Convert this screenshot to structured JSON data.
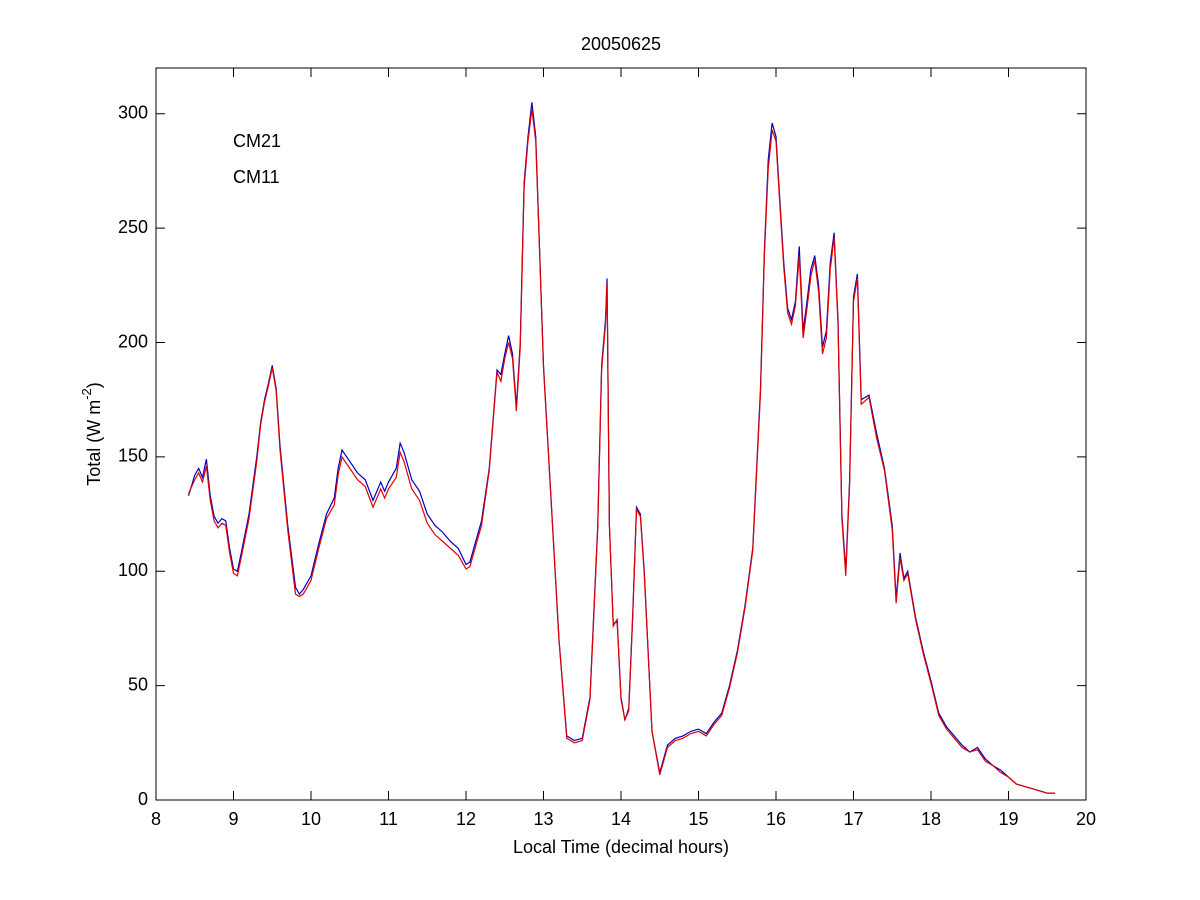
{
  "chart_data": {
    "type": "line",
    "title": "20050625",
    "xlabel": "Local Time (decimal hours)",
    "ylabel": [
      "Total (W m",
      "-2",
      ")"
    ],
    "xlim": [
      8,
      20
    ],
    "xticks": [
      8,
      9,
      10,
      11,
      12,
      13,
      14,
      15,
      16,
      17,
      18,
      19,
      20
    ],
    "ylim": [
      0,
      320
    ],
    "yticks": [
      0,
      50,
      100,
      150,
      200,
      250,
      300
    ],
    "legend": "upper left",
    "x": [
      8.42,
      8.5,
      8.55,
      8.6,
      8.65,
      8.7,
      8.75,
      8.8,
      8.85,
      8.9,
      8.95,
      9.0,
      9.05,
      9.1,
      9.2,
      9.3,
      9.35,
      9.4,
      9.45,
      9.5,
      9.55,
      9.6,
      9.7,
      9.8,
      9.85,
      9.9,
      10.0,
      10.1,
      10.2,
      10.3,
      10.35,
      10.4,
      10.5,
      10.6,
      10.7,
      10.8,
      10.9,
      10.95,
      11.0,
      11.1,
      11.15,
      11.2,
      11.3,
      11.4,
      11.5,
      11.6,
      11.7,
      11.8,
      11.9,
      12.0,
      12.05,
      12.1,
      12.2,
      12.3,
      12.4,
      12.45,
      12.5,
      12.55,
      12.6,
      12.65,
      12.7,
      12.75,
      12.8,
      12.85,
      12.9,
      12.95,
      13.0,
      13.1,
      13.2,
      13.3,
      13.4,
      13.5,
      13.6,
      13.7,
      13.75,
      13.8,
      13.82,
      13.85,
      13.9,
      13.95,
      14.0,
      14.05,
      14.1,
      14.15,
      14.2,
      14.25,
      14.3,
      14.4,
      14.5,
      14.55,
      14.6,
      14.7,
      14.8,
      14.9,
      15.0,
      15.1,
      15.2,
      15.3,
      15.4,
      15.5,
      15.6,
      15.7,
      15.8,
      15.85,
      15.9,
      15.95,
      16.0,
      16.05,
      16.1,
      16.15,
      16.2,
      16.25,
      16.3,
      16.35,
      16.4,
      16.45,
      16.5,
      16.55,
      16.6,
      16.65,
      16.7,
      16.75,
      16.8,
      16.85,
      16.9,
      16.95,
      17.0,
      17.05,
      17.1,
      17.2,
      17.3,
      17.4,
      17.5,
      17.55,
      17.6,
      17.65,
      17.7,
      17.8,
      17.9,
      18.0,
      18.1,
      18.2,
      18.3,
      18.4,
      18.5,
      18.6,
      18.7,
      18.8,
      18.9,
      19.0,
      19.1,
      19.2,
      19.3,
      19.4,
      19.5,
      19.6
    ],
    "series": [
      {
        "name": "CM21",
        "color": "#0000c0",
        "values": [
          133,
          142,
          145,
          141,
          149,
          133,
          124,
          121,
          123,
          122,
          110,
          101,
          100,
          108,
          125,
          150,
          165,
          175,
          182,
          190,
          180,
          155,
          120,
          93,
          90,
          92,
          98,
          112,
          125,
          132,
          145,
          153,
          148,
          143,
          140,
          131,
          139,
          135,
          139,
          145,
          156,
          152,
          140,
          135,
          125,
          120,
          117,
          113,
          110,
          103,
          104,
          110,
          122,
          145,
          188,
          186,
          195,
          203,
          195,
          172,
          200,
          270,
          290,
          305,
          290,
          240,
          190,
          130,
          70,
          28,
          26,
          27,
          45,
          120,
          190,
          210,
          228,
          120,
          77,
          78,
          45,
          35,
          40,
          80,
          128,
          125,
          100,
          30,
          12,
          18,
          24,
          27,
          28,
          30,
          31,
          29,
          34,
          38,
          50,
          65,
          85,
          110,
          180,
          240,
          280,
          296,
          290,
          262,
          235,
          215,
          210,
          218,
          242,
          205,
          218,
          232,
          238,
          225,
          198,
          205,
          235,
          248,
          210,
          125,
          100,
          140,
          220,
          230,
          175,
          177,
          160,
          145,
          120,
          88,
          108,
          97,
          100,
          80,
          65,
          52,
          38,
          32,
          28,
          24,
          21,
          23,
          18,
          15,
          13,
          10,
          7,
          6,
          5,
          4,
          3,
          3
        ]
      },
      {
        "name": "CM11",
        "color": "#e00000",
        "values": [
          134,
          140,
          143,
          139,
          146,
          131,
          122,
          119,
          121,
          120,
          108,
          99,
          98,
          106,
          123,
          148,
          164,
          174,
          181,
          189,
          179,
          153,
          118,
          90,
          89,
          90,
          96,
          110,
          123,
          129,
          142,
          150,
          145,
          140,
          137,
          128,
          136,
          132,
          136,
          141,
          152,
          148,
          136,
          131,
          121,
          116,
          113,
          110,
          107,
          101,
          102,
          108,
          120,
          144,
          187,
          183,
          193,
          200,
          193,
          170,
          198,
          268,
          288,
          302,
          288,
          239,
          189,
          130,
          70,
          27,
          25,
          26,
          44,
          119,
          188,
          208,
          226,
          121,
          76,
          79,
          44,
          35,
          39,
          79,
          127,
          124,
          99,
          30,
          11,
          17,
          23,
          26,
          27,
          29,
          30,
          28,
          33,
          37,
          49,
          64,
          84,
          109,
          178,
          238,
          276,
          293,
          288,
          260,
          233,
          213,
          208,
          216,
          238,
          202,
          215,
          229,
          236,
          222,
          195,
          202,
          232,
          246,
          208,
          123,
          98,
          138,
          218,
          228,
          173,
          176,
          158,
          144,
          118,
          86,
          106,
          96,
          99,
          79,
          64,
          51,
          37,
          31,
          27,
          23,
          21,
          22,
          17,
          15,
          12,
          10,
          7,
          6,
          5,
          4,
          3,
          3
        ]
      }
    ]
  }
}
